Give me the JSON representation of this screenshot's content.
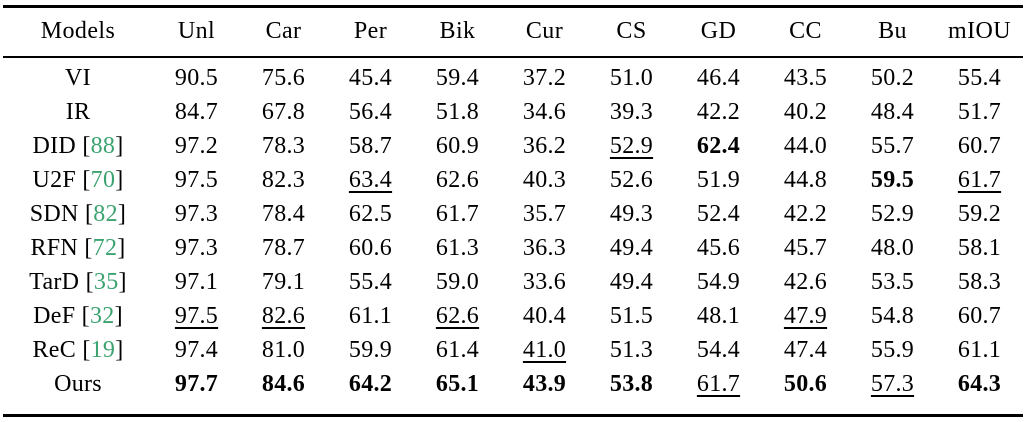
{
  "styles": {
    "citation_color": "#3CA370",
    "text_color": "#000000"
  },
  "table": {
    "columns": [
      "Models",
      "Unl",
      "Car",
      "Per",
      "Bik",
      "Cur",
      "CS",
      "GD",
      "CC",
      "Bu",
      "mIOU"
    ],
    "rows": [
      {
        "model": "VI",
        "cite": "",
        "cells": [
          {
            "v": "90.5"
          },
          {
            "v": "75.6"
          },
          {
            "v": "45.4"
          },
          {
            "v": "59.4"
          },
          {
            "v": "37.2"
          },
          {
            "v": "51.0"
          },
          {
            "v": "46.4"
          },
          {
            "v": "43.5"
          },
          {
            "v": "50.2"
          },
          {
            "v": "55.4"
          }
        ]
      },
      {
        "model": "IR",
        "cite": "",
        "cells": [
          {
            "v": "84.7"
          },
          {
            "v": "67.8"
          },
          {
            "v": "56.4"
          },
          {
            "v": "51.8"
          },
          {
            "v": "34.6"
          },
          {
            "v": "39.3"
          },
          {
            "v": "42.2"
          },
          {
            "v": "40.2"
          },
          {
            "v": "48.4"
          },
          {
            "v": "51.7"
          }
        ]
      },
      {
        "model": "DID",
        "cite": "88",
        "cells": [
          {
            "v": "97.2"
          },
          {
            "v": "78.3"
          },
          {
            "v": "58.7"
          },
          {
            "v": "60.9"
          },
          {
            "v": "36.2"
          },
          {
            "v": "52.9",
            "u": true
          },
          {
            "v": "62.4",
            "b": true
          },
          {
            "v": "44.0"
          },
          {
            "v": "55.7"
          },
          {
            "v": "60.7"
          }
        ]
      },
      {
        "model": "U2F",
        "cite": "70",
        "cells": [
          {
            "v": "97.5"
          },
          {
            "v": "82.3"
          },
          {
            "v": "63.4",
            "u": true
          },
          {
            "v": "62.6"
          },
          {
            "v": "40.3"
          },
          {
            "v": "52.6"
          },
          {
            "v": "51.9"
          },
          {
            "v": "44.8"
          },
          {
            "v": "59.5",
            "b": true
          },
          {
            "v": "61.7",
            "u": true
          }
        ]
      },
      {
        "model": "SDN",
        "cite": "82",
        "cells": [
          {
            "v": "97.3"
          },
          {
            "v": "78.4"
          },
          {
            "v": "62.5"
          },
          {
            "v": "61.7"
          },
          {
            "v": "35.7"
          },
          {
            "v": "49.3"
          },
          {
            "v": "52.4"
          },
          {
            "v": "42.2"
          },
          {
            "v": "52.9"
          },
          {
            "v": "59.2"
          }
        ]
      },
      {
        "model": "RFN",
        "cite": "72",
        "cells": [
          {
            "v": "97.3"
          },
          {
            "v": "78.7"
          },
          {
            "v": "60.6"
          },
          {
            "v": "61.3"
          },
          {
            "v": "36.3"
          },
          {
            "v": "49.4"
          },
          {
            "v": "45.6"
          },
          {
            "v": "45.7"
          },
          {
            "v": "48.0"
          },
          {
            "v": "58.1"
          }
        ]
      },
      {
        "model": "TarD",
        "cite": "35",
        "cells": [
          {
            "v": "97.1"
          },
          {
            "v": "79.1"
          },
          {
            "v": "55.4"
          },
          {
            "v": "59.0"
          },
          {
            "v": "33.6"
          },
          {
            "v": "49.4"
          },
          {
            "v": "54.9"
          },
          {
            "v": "42.6"
          },
          {
            "v": "53.5"
          },
          {
            "v": "58.3"
          }
        ]
      },
      {
        "model": "DeF",
        "cite": "32",
        "cells": [
          {
            "v": "97.5",
            "u": true
          },
          {
            "v": "82.6",
            "u": true
          },
          {
            "v": "61.1"
          },
          {
            "v": "62.6",
            "u": true
          },
          {
            "v": "40.4"
          },
          {
            "v": "51.5"
          },
          {
            "v": "48.1"
          },
          {
            "v": "47.9",
            "u": true
          },
          {
            "v": "54.8"
          },
          {
            "v": "60.7"
          }
        ]
      },
      {
        "model": "ReC",
        "cite": "19",
        "cells": [
          {
            "v": "97.4"
          },
          {
            "v": "81.0"
          },
          {
            "v": "59.9"
          },
          {
            "v": "61.4"
          },
          {
            "v": "41.0",
            "u": true
          },
          {
            "v": "51.3"
          },
          {
            "v": "54.4"
          },
          {
            "v": "47.4"
          },
          {
            "v": "55.9"
          },
          {
            "v": "61.1"
          }
        ]
      },
      {
        "model": "Ours",
        "cite": "",
        "cells": [
          {
            "v": "97.7",
            "b": true
          },
          {
            "v": "84.6",
            "b": true
          },
          {
            "v": "64.2",
            "b": true
          },
          {
            "v": "65.1",
            "b": true
          },
          {
            "v": "43.9",
            "b": true
          },
          {
            "v": "53.8",
            "b": true
          },
          {
            "v": "61.7",
            "u": true
          },
          {
            "v": "50.6",
            "b": true
          },
          {
            "v": "57.3",
            "u": true
          },
          {
            "v": "64.3",
            "b": true
          }
        ]
      }
    ]
  }
}
